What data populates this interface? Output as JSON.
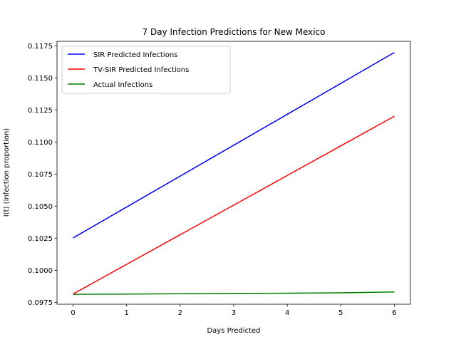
{
  "chart_data": {
    "type": "line",
    "title": "7 Day Infection Predictions for New Mexico",
    "xlabel": "Days Predicted",
    "ylabel": "I(t) (infection proportion)",
    "x": [
      0,
      1,
      2,
      3,
      4,
      5,
      6
    ],
    "xlim": [
      -0.3,
      6.3
    ],
    "ylim": [
      0.09735,
      0.11785
    ],
    "xticks": [
      0,
      1,
      2,
      3,
      4,
      5,
      6
    ],
    "yticks": [
      0.0975,
      0.1,
      0.1025,
      0.105,
      0.1075,
      0.11,
      0.1125,
      0.115,
      0.1175
    ],
    "ytick_labels": [
      "0.0975",
      "0.1000",
      "0.1025",
      "0.1050",
      "0.1075",
      "0.1100",
      "0.1125",
      "0.1150",
      "0.1175"
    ],
    "grid": false,
    "legend_position": "top-left",
    "series": [
      {
        "name": "SIR Predicted Infections",
        "color": "#0000ff",
        "values": [
          0.10252,
          0.10493,
          0.10734,
          0.10975,
          0.11216,
          0.11457,
          0.11698
        ]
      },
      {
        "name": "TV-SIR Predicted Infections",
        "color": "#ff0000",
        "values": [
          0.09815,
          0.10046,
          0.10277,
          0.10508,
          0.10739,
          0.1097,
          0.11201
        ]
      },
      {
        "name": "Actual Infections",
        "color": "#008000",
        "values": [
          0.09812,
          0.09814,
          0.09817,
          0.09819,
          0.09821,
          0.09824,
          0.09831
        ]
      }
    ]
  }
}
